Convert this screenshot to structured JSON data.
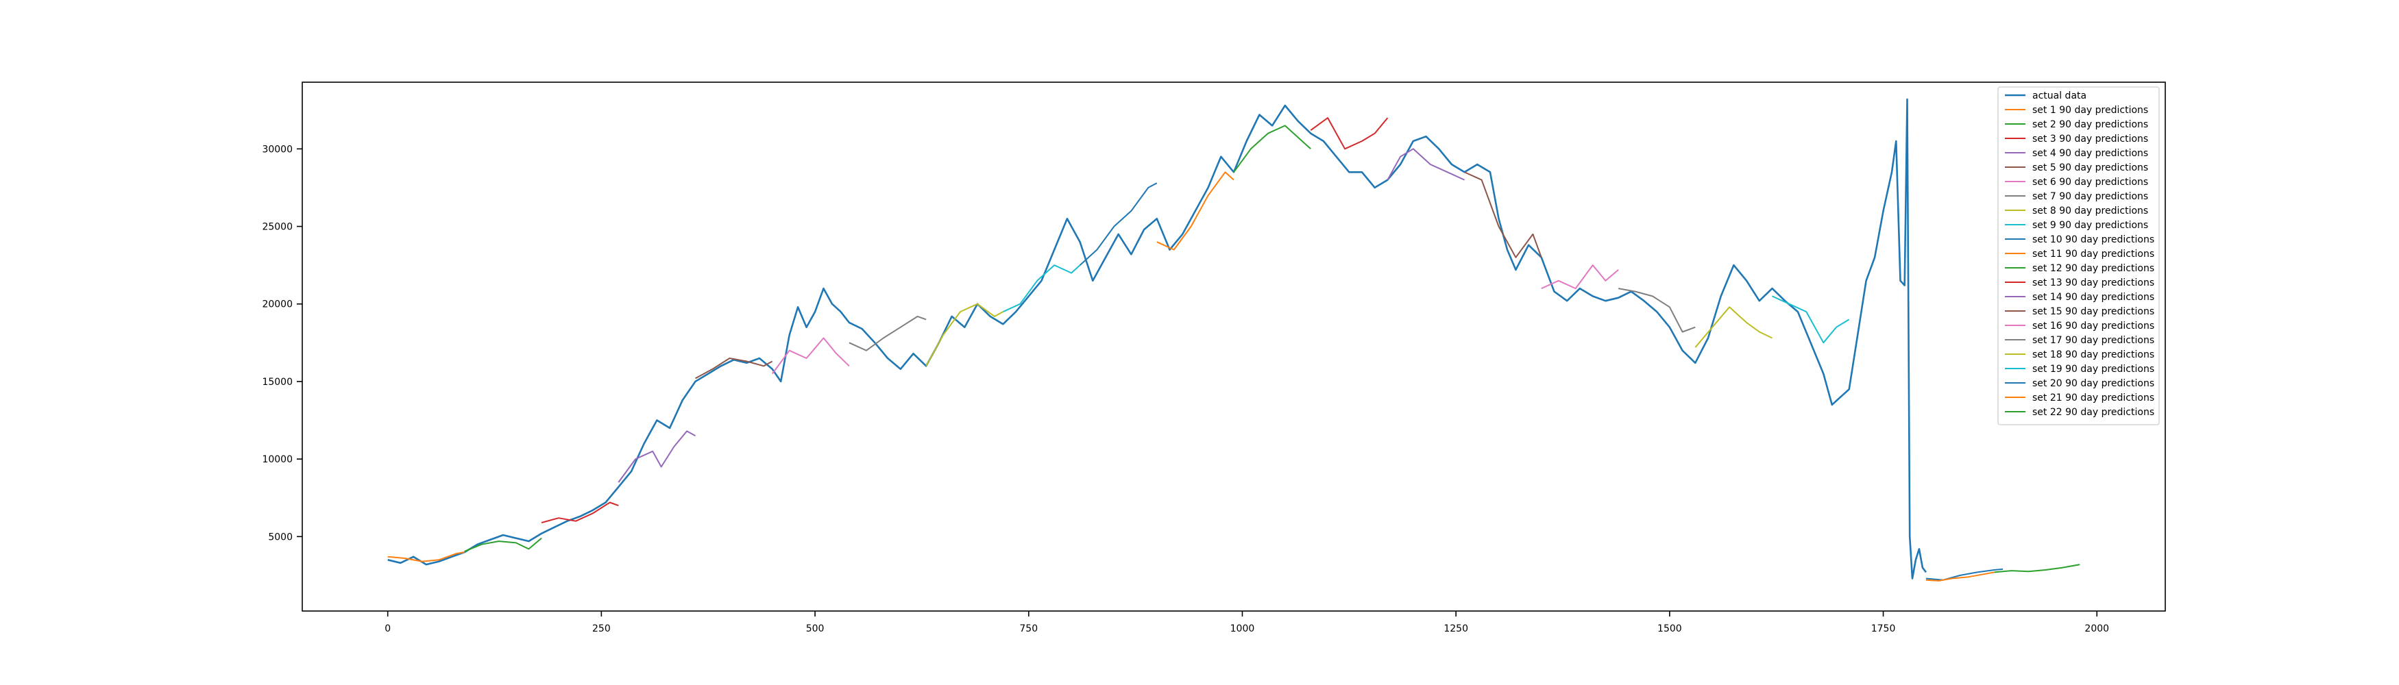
{
  "chart_data": {
    "type": "line",
    "title": "",
    "xlabel": "",
    "ylabel": "",
    "xlim": [
      -100,
      2080
    ],
    "ylim": [
      200,
      34300
    ],
    "x_ticks": [
      0,
      250,
      500,
      750,
      1000,
      1250,
      1500,
      1750,
      2000
    ],
    "y_ticks": [
      5000,
      10000,
      15000,
      20000,
      25000,
      30000
    ],
    "grid": false,
    "legend_position": "top-right",
    "series": [
      {
        "name": "actual data",
        "color": "#1f77b4",
        "points": [
          [
            0,
            3500
          ],
          [
            15,
            3300
          ],
          [
            30,
            3700
          ],
          [
            45,
            3200
          ],
          [
            60,
            3400
          ],
          [
            75,
            3700
          ],
          [
            90,
            4000
          ],
          [
            105,
            4500
          ],
          [
            120,
            4800
          ],
          [
            135,
            5100
          ],
          [
            150,
            4900
          ],
          [
            165,
            4700
          ],
          [
            180,
            5200
          ],
          [
            195,
            5600
          ],
          [
            210,
            6000
          ],
          [
            225,
            6300
          ],
          [
            240,
            6700
          ],
          [
            255,
            7200
          ],
          [
            270,
            8200
          ],
          [
            285,
            9200
          ],
          [
            300,
            11000
          ],
          [
            315,
            12500
          ],
          [
            330,
            12000
          ],
          [
            345,
            13800
          ],
          [
            360,
            15000
          ],
          [
            375,
            15500
          ],
          [
            390,
            16000
          ],
          [
            405,
            16400
          ],
          [
            420,
            16200
          ],
          [
            435,
            16500
          ],
          [
            450,
            15800
          ],
          [
            460,
            15000
          ],
          [
            470,
            18000
          ],
          [
            480,
            19800
          ],
          [
            490,
            18500
          ],
          [
            500,
            19500
          ],
          [
            510,
            21000
          ],
          [
            520,
            20000
          ],
          [
            530,
            19500
          ],
          [
            540,
            18800
          ],
          [
            555,
            18400
          ],
          [
            570,
            17500
          ],
          [
            585,
            16500
          ],
          [
            600,
            15800
          ],
          [
            615,
            16800
          ],
          [
            630,
            16000
          ],
          [
            645,
            17500
          ],
          [
            660,
            19200
          ],
          [
            675,
            18500
          ],
          [
            690,
            20000
          ],
          [
            705,
            19200
          ],
          [
            720,
            18700
          ],
          [
            735,
            19500
          ],
          [
            750,
            20500
          ],
          [
            765,
            21500
          ],
          [
            780,
            23500
          ],
          [
            795,
            25500
          ],
          [
            810,
            24000
          ],
          [
            825,
            21500
          ],
          [
            840,
            23000
          ],
          [
            855,
            24500
          ],
          [
            870,
            23200
          ],
          [
            885,
            24800
          ],
          [
            900,
            25500
          ],
          [
            915,
            23500
          ],
          [
            930,
            24500
          ],
          [
            945,
            26000
          ],
          [
            960,
            27500
          ],
          [
            975,
            29500
          ],
          [
            990,
            28500
          ],
          [
            1005,
            30500
          ],
          [
            1020,
            32200
          ],
          [
            1035,
            31500
          ],
          [
            1050,
            32800
          ],
          [
            1065,
            31800
          ],
          [
            1080,
            31000
          ],
          [
            1095,
            30500
          ],
          [
            1110,
            29500
          ],
          [
            1125,
            28500
          ],
          [
            1140,
            28500
          ],
          [
            1155,
            27500
          ],
          [
            1170,
            28000
          ],
          [
            1185,
            29000
          ],
          [
            1200,
            30500
          ],
          [
            1215,
            30800
          ],
          [
            1230,
            30000
          ],
          [
            1245,
            29000
          ],
          [
            1260,
            28500
          ],
          [
            1275,
            29000
          ],
          [
            1290,
            28500
          ],
          [
            1300,
            25500
          ],
          [
            1310,
            23500
          ],
          [
            1320,
            22200
          ],
          [
            1335,
            23800
          ],
          [
            1350,
            23000
          ],
          [
            1365,
            20800
          ],
          [
            1380,
            20200
          ],
          [
            1395,
            21000
          ],
          [
            1410,
            20500
          ],
          [
            1425,
            20200
          ],
          [
            1440,
            20400
          ],
          [
            1455,
            20800
          ],
          [
            1470,
            20200
          ],
          [
            1485,
            19500
          ],
          [
            1500,
            18500
          ],
          [
            1515,
            17000
          ],
          [
            1530,
            16200
          ],
          [
            1545,
            17800
          ],
          [
            1560,
            20500
          ],
          [
            1575,
            22500
          ],
          [
            1590,
            21500
          ],
          [
            1605,
            20200
          ],
          [
            1620,
            21000
          ],
          [
            1635,
            20200
          ],
          [
            1650,
            19500
          ],
          [
            1665,
            17500
          ],
          [
            1680,
            15500
          ],
          [
            1690,
            13500
          ],
          [
            1700,
            14000
          ],
          [
            1710,
            14500
          ],
          [
            1720,
            18000
          ],
          [
            1730,
            21500
          ],
          [
            1740,
            23000
          ],
          [
            1750,
            26000
          ],
          [
            1760,
            28500
          ],
          [
            1765,
            30500
          ],
          [
            1770,
            21500
          ],
          [
            1775,
            21200
          ],
          [
            1778,
            33200
          ],
          [
            1781,
            5000
          ],
          [
            1784,
            2300
          ],
          [
            1788,
            3500
          ],
          [
            1792,
            4200
          ],
          [
            1796,
            3000
          ],
          [
            1800,
            2700
          ]
        ]
      },
      {
        "name": "set 1 90 day predictions",
        "color": "#ff7f0e",
        "points": [
          [
            0,
            3700
          ],
          [
            20,
            3600
          ],
          [
            40,
            3400
          ],
          [
            60,
            3500
          ],
          [
            80,
            3900
          ],
          [
            90,
            4000
          ]
        ]
      },
      {
        "name": "set 2 90 day predictions",
        "color": "#2ca02c",
        "points": [
          [
            90,
            4050
          ],
          [
            110,
            4500
          ],
          [
            130,
            4700
          ],
          [
            150,
            4600
          ],
          [
            165,
            4200
          ],
          [
            180,
            4900
          ]
        ]
      },
      {
        "name": "set 3 90 day predictions",
        "color": "#d62728",
        "points": [
          [
            180,
            5900
          ],
          [
            200,
            6200
          ],
          [
            220,
            6000
          ],
          [
            240,
            6500
          ],
          [
            260,
            7200
          ],
          [
            270,
            7000
          ]
        ]
      },
      {
        "name": "set 4 90 day predictions",
        "color": "#9467bd",
        "points": [
          [
            270,
            8500
          ],
          [
            290,
            10000
          ],
          [
            310,
            10500
          ],
          [
            320,
            9500
          ],
          [
            335,
            10800
          ],
          [
            350,
            11800
          ],
          [
            360,
            11500
          ]
        ]
      },
      {
        "name": "set 5 90 day predictions",
        "color": "#8c564b",
        "points": [
          [
            360,
            15200
          ],
          [
            380,
            15800
          ],
          [
            400,
            16500
          ],
          [
            420,
            16300
          ],
          [
            440,
            16000
          ],
          [
            450,
            16300
          ]
        ]
      },
      {
        "name": "set 6 90 day predictions",
        "color": "#e377c2",
        "points": [
          [
            450,
            15500
          ],
          [
            470,
            17000
          ],
          [
            490,
            16500
          ],
          [
            510,
            17800
          ],
          [
            525,
            16800
          ],
          [
            540,
            16000
          ]
        ]
      },
      {
        "name": "set 7 90 day predictions",
        "color": "#7f7f7f",
        "points": [
          [
            540,
            17500
          ],
          [
            560,
            17000
          ],
          [
            580,
            17800
          ],
          [
            600,
            18500
          ],
          [
            620,
            19200
          ],
          [
            630,
            19000
          ]
        ]
      },
      {
        "name": "set 8 90 day predictions",
        "color": "#bcbd22",
        "points": [
          [
            630,
            16000
          ],
          [
            650,
            18000
          ],
          [
            670,
            19500
          ],
          [
            690,
            20000
          ],
          [
            710,
            19200
          ],
          [
            720,
            19500
          ]
        ]
      },
      {
        "name": "set 9 90 day predictions",
        "color": "#17becf",
        "points": [
          [
            720,
            19500
          ],
          [
            740,
            20000
          ],
          [
            760,
            21500
          ],
          [
            780,
            22500
          ],
          [
            800,
            22000
          ],
          [
            810,
            22500
          ]
        ]
      },
      {
        "name": "set 10 90 day predictions",
        "color": "#1f77b4",
        "points": [
          [
            810,
            22500
          ],
          [
            830,
            23500
          ],
          [
            850,
            25000
          ],
          [
            870,
            26000
          ],
          [
            890,
            27500
          ],
          [
            900,
            27800
          ]
        ]
      },
      {
        "name": "set 11 90 day predictions",
        "color": "#ff7f0e",
        "points": [
          [
            900,
            24000
          ],
          [
            920,
            23500
          ],
          [
            940,
            25000
          ],
          [
            960,
            27000
          ],
          [
            980,
            28500
          ],
          [
            990,
            28000
          ]
        ]
      },
      {
        "name": "set 12 90 day predictions",
        "color": "#2ca02c",
        "points": [
          [
            990,
            28500
          ],
          [
            1010,
            30000
          ],
          [
            1030,
            31000
          ],
          [
            1050,
            31500
          ],
          [
            1070,
            30500
          ],
          [
            1080,
            30000
          ]
        ]
      },
      {
        "name": "set 13 90 day predictions",
        "color": "#d62728",
        "points": [
          [
            1080,
            31200
          ],
          [
            1100,
            32000
          ],
          [
            1120,
            30000
          ],
          [
            1140,
            30500
          ],
          [
            1155,
            31000
          ],
          [
            1170,
            32000
          ]
        ]
      },
      {
        "name": "set 14 90 day predictions",
        "color": "#9467bd",
        "points": [
          [
            1170,
            28000
          ],
          [
            1185,
            29500
          ],
          [
            1200,
            30000
          ],
          [
            1220,
            29000
          ],
          [
            1240,
            28500
          ],
          [
            1260,
            28000
          ]
        ]
      },
      {
        "name": "set 15 90 day predictions",
        "color": "#8c564b",
        "points": [
          [
            1260,
            28500
          ],
          [
            1280,
            28000
          ],
          [
            1300,
            25000
          ],
          [
            1320,
            23000
          ],
          [
            1340,
            24500
          ],
          [
            1350,
            23000
          ]
        ]
      },
      {
        "name": "set 16 90 day predictions",
        "color": "#e377c2",
        "points": [
          [
            1350,
            21000
          ],
          [
            1370,
            21500
          ],
          [
            1390,
            21000
          ],
          [
            1410,
            22500
          ],
          [
            1425,
            21500
          ],
          [
            1440,
            22200
          ]
        ]
      },
      {
        "name": "set 17 90 day predictions",
        "color": "#7f7f7f",
        "points": [
          [
            1440,
            21000
          ],
          [
            1460,
            20800
          ],
          [
            1480,
            20500
          ],
          [
            1500,
            19800
          ],
          [
            1515,
            18200
          ],
          [
            1530,
            18500
          ]
        ]
      },
      {
        "name": "set 18 90 day predictions",
        "color": "#bcbd22",
        "points": [
          [
            1530,
            17200
          ],
          [
            1550,
            18500
          ],
          [
            1570,
            19800
          ],
          [
            1590,
            18800
          ],
          [
            1605,
            18200
          ],
          [
            1620,
            17800
          ]
        ]
      },
      {
        "name": "set 19 90 day predictions",
        "color": "#17becf",
        "points": [
          [
            1620,
            20500
          ],
          [
            1640,
            20000
          ],
          [
            1660,
            19500
          ],
          [
            1680,
            17500
          ],
          [
            1695,
            18500
          ],
          [
            1710,
            19000
          ]
        ]
      },
      {
        "name": "set 20 90 day predictions",
        "color": "#1f77b4",
        "points": [
          [
            1800,
            2300
          ],
          [
            1820,
            2200
          ],
          [
            1840,
            2500
          ],
          [
            1860,
            2700
          ],
          [
            1880,
            2850
          ],
          [
            1890,
            2900
          ]
        ]
      },
      {
        "name": "set 21 90 day predictions",
        "color": "#ff7f0e",
        "points": [
          [
            1800,
            2200
          ],
          [
            1815,
            2150
          ],
          [
            1830,
            2300
          ],
          [
            1850,
            2400
          ],
          [
            1870,
            2600
          ],
          [
            1880,
            2700
          ]
        ]
      },
      {
        "name": "set 22 90 day predictions",
        "color": "#2ca02c",
        "points": [
          [
            1880,
            2700
          ],
          [
            1900,
            2800
          ],
          [
            1920,
            2750
          ],
          [
            1940,
            2850
          ],
          [
            1960,
            3000
          ],
          [
            1980,
            3200
          ]
        ]
      }
    ]
  }
}
